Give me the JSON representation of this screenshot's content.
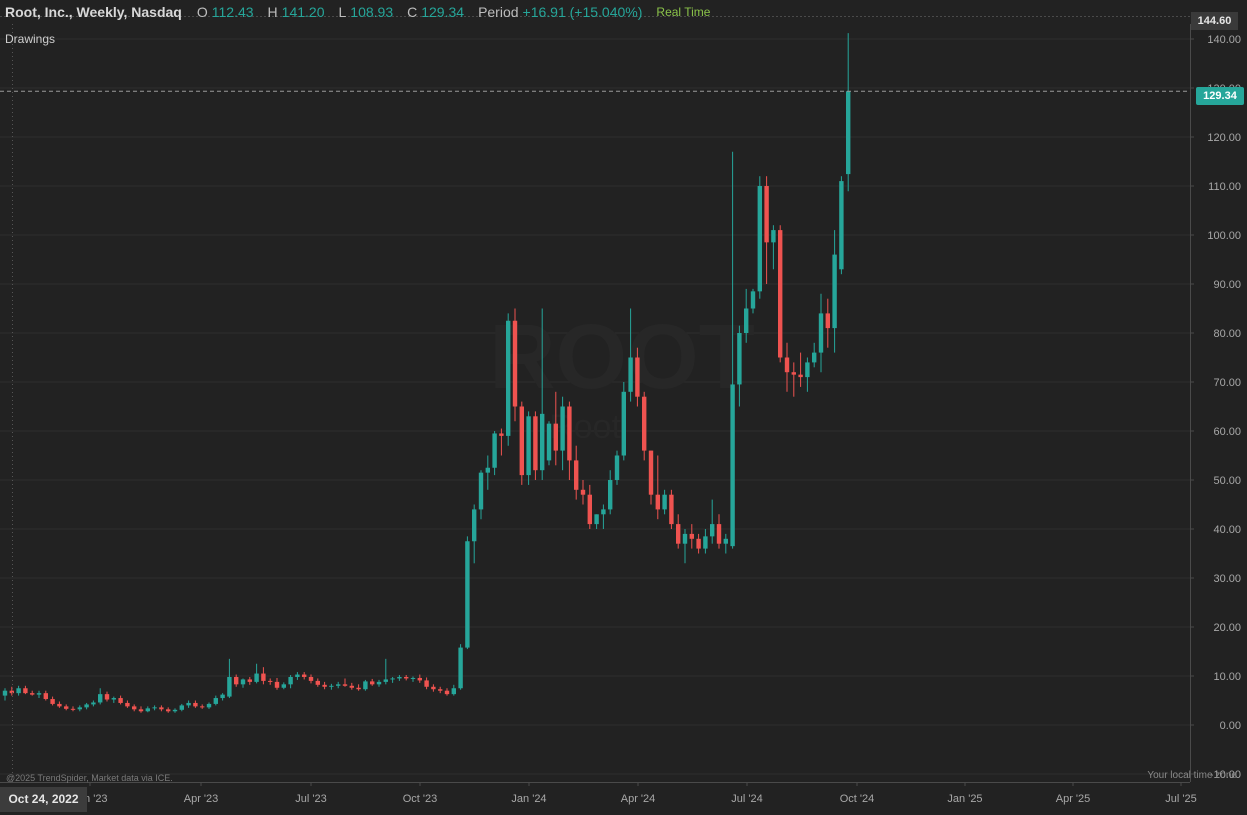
{
  "header": {
    "title": "Root, Inc., Weekly, Nasdaq",
    "open_label": "O",
    "open_value": "112.43",
    "high_label": "H",
    "high_value": "141.20",
    "low_label": "L",
    "low_value": "108.93",
    "close_label": "C",
    "close_value": "129.34",
    "period_label": "Period",
    "period_value": "+16.91 (+15.040%)",
    "realtime": "Real Time"
  },
  "drawings_label": "Drawings",
  "crosshair_date": "Oct 24, 2022",
  "copyright": "@2025 TrendSpider, Market data via ICE.",
  "local_time_note": "Your local time zone",
  "price_tag": "129.34",
  "high_tag": "144.60",
  "watermark": "ROOT",
  "watermark_sub": "Root",
  "colors": {
    "up": "#26a69a",
    "down": "#ef5350",
    "background": "#222222",
    "grid": "#2d2d2d"
  },
  "chart_data": {
    "type": "candlestick",
    "title": "Root, Inc., Weekly, Nasdaq",
    "y_ticks": [
      "-10.00",
      "0.00",
      "10.00",
      "20.00",
      "30.00",
      "40.00",
      "50.00",
      "60.00",
      "70.00",
      "80.00",
      "90.00",
      "100.00",
      "110.00",
      "120.00",
      "130.00",
      "140.00"
    ],
    "x_ticks": [
      "Jan '23",
      "Apr '23",
      "Jul '23",
      "Oct '23",
      "Jan '24",
      "Apr '24",
      "Jul '24",
      "Oct '24",
      "Jan '25",
      "Apr '25",
      "Jul '25"
    ],
    "ylim": [
      -10,
      144.6
    ],
    "last_price": 129.34,
    "candles": [
      {
        "o": 6,
        "h": 7.5,
        "l": 5,
        "c": 7
      },
      {
        "o": 7,
        "h": 7.8,
        "l": 6,
        "c": 6.5
      },
      {
        "o": 6.5,
        "h": 8,
        "l": 6,
        "c": 7.5
      },
      {
        "o": 7.5,
        "h": 8,
        "l": 6.3,
        "c": 6.5
      },
      {
        "o": 6.5,
        "h": 7,
        "l": 6,
        "c": 6.2
      },
      {
        "o": 6.2,
        "h": 7,
        "l": 5.5,
        "c": 6.5
      },
      {
        "o": 6.5,
        "h": 7,
        "l": 5,
        "c": 5.3
      },
      {
        "o": 5.3,
        "h": 5.8,
        "l": 4,
        "c": 4.3
      },
      {
        "o": 4.3,
        "h": 4.8,
        "l": 3.5,
        "c": 3.8
      },
      {
        "o": 3.8,
        "h": 4.2,
        "l": 3,
        "c": 3.3
      },
      {
        "o": 3.3,
        "h": 3.8,
        "l": 2.8,
        "c": 3.2
      },
      {
        "o": 3.2,
        "h": 4,
        "l": 2.8,
        "c": 3.6
      },
      {
        "o": 3.6,
        "h": 4.5,
        "l": 3.2,
        "c": 4.2
      },
      {
        "o": 4.2,
        "h": 5,
        "l": 3.8,
        "c": 4.6
      },
      {
        "o": 4.6,
        "h": 7.5,
        "l": 4.2,
        "c": 6.3
      },
      {
        "o": 6.3,
        "h": 6.8,
        "l": 4.8,
        "c": 5.2
      },
      {
        "o": 5.2,
        "h": 5.8,
        "l": 4.5,
        "c": 5.5
      },
      {
        "o": 5.5,
        "h": 6,
        "l": 4.2,
        "c": 4.5
      },
      {
        "o": 4.5,
        "h": 5,
        "l": 3.5,
        "c": 3.8
      },
      {
        "o": 3.8,
        "h": 4.2,
        "l": 2.8,
        "c": 3.2
      },
      {
        "o": 3.2,
        "h": 3.8,
        "l": 2.5,
        "c": 2.8
      },
      {
        "o": 2.8,
        "h": 3.8,
        "l": 2.6,
        "c": 3.4
      },
      {
        "o": 3.4,
        "h": 4,
        "l": 3,
        "c": 3.6
      },
      {
        "o": 3.6,
        "h": 4,
        "l": 2.8,
        "c": 3.2
      },
      {
        "o": 3.2,
        "h": 3.6,
        "l": 2.5,
        "c": 2.8
      },
      {
        "o": 2.8,
        "h": 3.4,
        "l": 2.5,
        "c": 3.1
      },
      {
        "o": 3.1,
        "h": 4.3,
        "l": 2.8,
        "c": 4
      },
      {
        "o": 4,
        "h": 5,
        "l": 3.5,
        "c": 4.5
      },
      {
        "o": 4.5,
        "h": 5,
        "l": 3.5,
        "c": 3.8
      },
      {
        "o": 3.8,
        "h": 4.2,
        "l": 3.3,
        "c": 3.6
      },
      {
        "o": 3.6,
        "h": 4.6,
        "l": 3.3,
        "c": 4.3
      },
      {
        "o": 4.3,
        "h": 6,
        "l": 4,
        "c": 5.5
      },
      {
        "o": 5.5,
        "h": 6.5,
        "l": 5,
        "c": 6.2
      },
      {
        "o": 5.8,
        "h": 13.5,
        "l": 5.5,
        "c": 9.8
      },
      {
        "o": 9.8,
        "h": 10.3,
        "l": 7.8,
        "c": 8.3
      },
      {
        "o": 8.3,
        "h": 9.5,
        "l": 7.6,
        "c": 9.3
      },
      {
        "o": 9.3,
        "h": 9.8,
        "l": 8.2,
        "c": 8.8
      },
      {
        "o": 8.8,
        "h": 12.5,
        "l": 8.5,
        "c": 10.5
      },
      {
        "o": 10.5,
        "h": 11.8,
        "l": 8.3,
        "c": 9
      },
      {
        "o": 9,
        "h": 9.5,
        "l": 8.2,
        "c": 8.8
      },
      {
        "o": 8.8,
        "h": 9.6,
        "l": 7.2,
        "c": 7.6
      },
      {
        "o": 7.6,
        "h": 8.7,
        "l": 7.3,
        "c": 8.3
      },
      {
        "o": 8.3,
        "h": 10.2,
        "l": 7.5,
        "c": 9.8
      },
      {
        "o": 9.8,
        "h": 10.8,
        "l": 9.2,
        "c": 10.3
      },
      {
        "o": 10.3,
        "h": 10.8,
        "l": 9.3,
        "c": 9.8
      },
      {
        "o": 9.8,
        "h": 10.3,
        "l": 8.5,
        "c": 9
      },
      {
        "o": 9,
        "h": 9.5,
        "l": 7.8,
        "c": 8.2
      },
      {
        "o": 8.2,
        "h": 8.8,
        "l": 7.3,
        "c": 7.8
      },
      {
        "o": 7.8,
        "h": 8.4,
        "l": 7.2,
        "c": 8
      },
      {
        "o": 8,
        "h": 8.8,
        "l": 7.5,
        "c": 8.3
      },
      {
        "o": 8.3,
        "h": 9.5,
        "l": 7.8,
        "c": 8
      },
      {
        "o": 8,
        "h": 8.6,
        "l": 7.2,
        "c": 7.6
      },
      {
        "o": 7.6,
        "h": 8.3,
        "l": 7,
        "c": 7.3
      },
      {
        "o": 7.3,
        "h": 9.2,
        "l": 7,
        "c": 8.9
      },
      {
        "o": 8.9,
        "h": 9.4,
        "l": 8,
        "c": 8.3
      },
      {
        "o": 8.3,
        "h": 9.2,
        "l": 7.8,
        "c": 8.8
      },
      {
        "o": 8.8,
        "h": 13.5,
        "l": 8.3,
        "c": 9.3
      },
      {
        "o": 9.3,
        "h": 9.8,
        "l": 8.6,
        "c": 9.5
      },
      {
        "o": 9.5,
        "h": 10.2,
        "l": 9,
        "c": 9.8
      },
      {
        "o": 9.8,
        "h": 10.2,
        "l": 9.1,
        "c": 9.5
      },
      {
        "o": 9.5,
        "h": 9.9,
        "l": 8.8,
        "c": 9.6
      },
      {
        "o": 9.6,
        "h": 10.3,
        "l": 8.6,
        "c": 9.1
      },
      {
        "o": 9.1,
        "h": 9.7,
        "l": 7.3,
        "c": 7.8
      },
      {
        "o": 7.8,
        "h": 8.3,
        "l": 6.8,
        "c": 7.3
      },
      {
        "o": 7.3,
        "h": 7.8,
        "l": 6.5,
        "c": 7
      },
      {
        "o": 7,
        "h": 7.5,
        "l": 6,
        "c": 6.3
      },
      {
        "o": 6.3,
        "h": 8.2,
        "l": 6,
        "c": 7.5
      },
      {
        "o": 7.5,
        "h": 16.5,
        "l": 7.2,
        "c": 15.8
      },
      {
        "o": 15.8,
        "h": 38.5,
        "l": 15.5,
        "c": 37.5
      },
      {
        "o": 37.5,
        "h": 45,
        "l": 33,
        "c": 44
      },
      {
        "o": 44,
        "h": 52,
        "l": 42,
        "c": 51.5
      },
      {
        "o": 51.5,
        "h": 55,
        "l": 48,
        "c": 52.5
      },
      {
        "o": 52.5,
        "h": 60,
        "l": 51,
        "c": 59.5
      },
      {
        "o": 59.5,
        "h": 60.5,
        "l": 55,
        "c": 59
      },
      {
        "o": 59,
        "h": 84,
        "l": 57,
        "c": 82.5
      },
      {
        "o": 82.5,
        "h": 85,
        "l": 62,
        "c": 65
      },
      {
        "o": 65,
        "h": 66,
        "l": 49,
        "c": 51
      },
      {
        "o": 51,
        "h": 64,
        "l": 49,
        "c": 63
      },
      {
        "o": 63,
        "h": 64,
        "l": 50,
        "c": 52
      },
      {
        "o": 52,
        "h": 85,
        "l": 50,
        "c": 63.5
      },
      {
        "o": 54,
        "h": 62,
        "l": 53,
        "c": 61.5
      },
      {
        "o": 61.5,
        "h": 68,
        "l": 53,
        "c": 56
      },
      {
        "o": 56,
        "h": 67,
        "l": 52,
        "c": 65
      },
      {
        "o": 65,
        "h": 66,
        "l": 50,
        "c": 54
      },
      {
        "o": 54,
        "h": 57,
        "l": 46,
        "c": 48
      },
      {
        "o": 48,
        "h": 50,
        "l": 45,
        "c": 47
      },
      {
        "o": 47,
        "h": 49,
        "l": 40,
        "c": 41
      },
      {
        "o": 41,
        "h": 43,
        "l": 40,
        "c": 43
      },
      {
        "o": 43,
        "h": 45,
        "l": 40,
        "c": 44
      },
      {
        "o": 44,
        "h": 52,
        "l": 43,
        "c": 50
      },
      {
        "o": 50,
        "h": 56,
        "l": 49,
        "c": 55
      },
      {
        "o": 55,
        "h": 70,
        "l": 54,
        "c": 68
      },
      {
        "o": 68,
        "h": 85,
        "l": 66,
        "c": 75
      },
      {
        "o": 75,
        "h": 77,
        "l": 65,
        "c": 67
      },
      {
        "o": 67,
        "h": 68,
        "l": 54,
        "c": 56
      },
      {
        "o": 56,
        "h": 56,
        "l": 45,
        "c": 47
      },
      {
        "o": 47,
        "h": 55,
        "l": 42,
        "c": 44
      },
      {
        "o": 44,
        "h": 48,
        "l": 43,
        "c": 47
      },
      {
        "o": 47,
        "h": 48,
        "l": 40,
        "c": 41
      },
      {
        "o": 41,
        "h": 43,
        "l": 36,
        "c": 37
      },
      {
        "o": 37,
        "h": 40,
        "l": 33,
        "c": 39
      },
      {
        "o": 39,
        "h": 41,
        "l": 36,
        "c": 38
      },
      {
        "o": 38,
        "h": 39,
        "l": 35,
        "c": 36
      },
      {
        "o": 36,
        "h": 40,
        "l": 35,
        "c": 38.5
      },
      {
        "o": 38.5,
        "h": 46,
        "l": 37,
        "c": 41
      },
      {
        "o": 41,
        "h": 43,
        "l": 36,
        "c": 37
      },
      {
        "o": 37,
        "h": 39,
        "l": 35,
        "c": 38
      },
      {
        "o": 36.5,
        "h": 117,
        "l": 36,
        "c": 69.5
      },
      {
        "o": 69.5,
        "h": 81.5,
        "l": 65,
        "c": 80
      },
      {
        "o": 80,
        "h": 89,
        "l": 78,
        "c": 85
      },
      {
        "o": 85,
        "h": 89,
        "l": 84,
        "c": 88.5
      },
      {
        "o": 88.5,
        "h": 112,
        "l": 87,
        "c": 110
      },
      {
        "o": 110,
        "h": 112,
        "l": 90,
        "c": 98.5
      },
      {
        "o": 98.5,
        "h": 102,
        "l": 93,
        "c": 101
      },
      {
        "o": 101,
        "h": 102,
        "l": 74,
        "c": 75
      },
      {
        "o": 75,
        "h": 78,
        "l": 68,
        "c": 72
      },
      {
        "o": 72,
        "h": 74,
        "l": 67,
        "c": 71.5
      },
      {
        "o": 71.5,
        "h": 76,
        "l": 69,
        "c": 71
      },
      {
        "o": 71,
        "h": 75,
        "l": 68,
        "c": 74
      },
      {
        "o": 74,
        "h": 78,
        "l": 73,
        "c": 76
      },
      {
        "o": 76,
        "h": 88,
        "l": 72,
        "c": 84
      },
      {
        "o": 84,
        "h": 87,
        "l": 77,
        "c": 81
      },
      {
        "o": 81,
        "h": 101,
        "l": 76,
        "c": 96
      },
      {
        "o": 93,
        "h": 112,
        "l": 92,
        "c": 111
      },
      {
        "o": 112.43,
        "h": 141.2,
        "l": 108.93,
        "c": 129.34
      }
    ]
  }
}
